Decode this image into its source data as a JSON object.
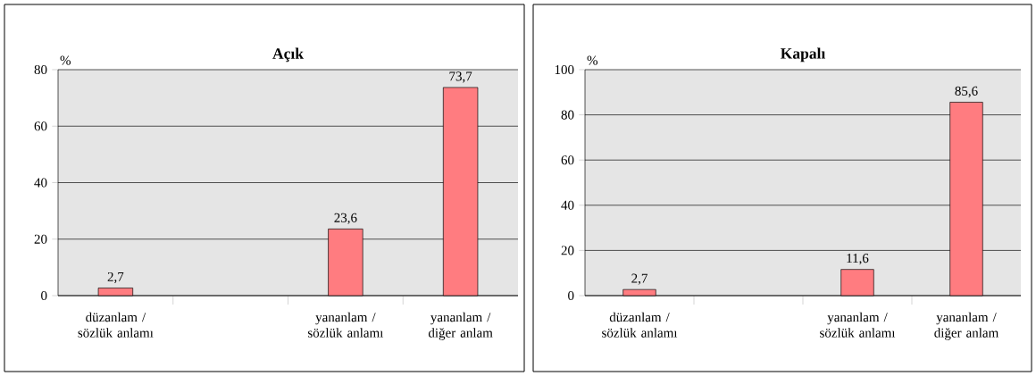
{
  "chart_data": [
    {
      "type": "bar",
      "title": "Açık",
      "ylabel": "%",
      "categories": [
        "düzanlam / sözlük anlamı",
        null,
        "yananlam / sözlük anlamı",
        "yananlam / diğer anlam"
      ],
      "values": [
        2.7,
        null,
        23.6,
        73.7
      ],
      "value_labels": [
        "2,7",
        null,
        "23,6",
        "73,7"
      ],
      "color": "#ff7c80",
      "ylim": [
        0,
        80
      ],
      "yticks": [
        0,
        20,
        40,
        60,
        80
      ],
      "grid": "y"
    },
    {
      "type": "bar",
      "title": "Kapalı",
      "ylabel": "%",
      "categories": [
        "düzanlam / sözlük anlamı",
        null,
        "yananlam / sözlük anlamı",
        "yananlam / diğer anlam"
      ],
      "values": [
        2.7,
        null,
        11.6,
        85.6
      ],
      "value_labels": [
        "2,7",
        null,
        "11,6",
        "85,6"
      ],
      "color": "#ff7c80",
      "ylim": [
        0,
        100
      ],
      "yticks": [
        0,
        20,
        40,
        60,
        80,
        100
      ],
      "grid": "y"
    }
  ]
}
